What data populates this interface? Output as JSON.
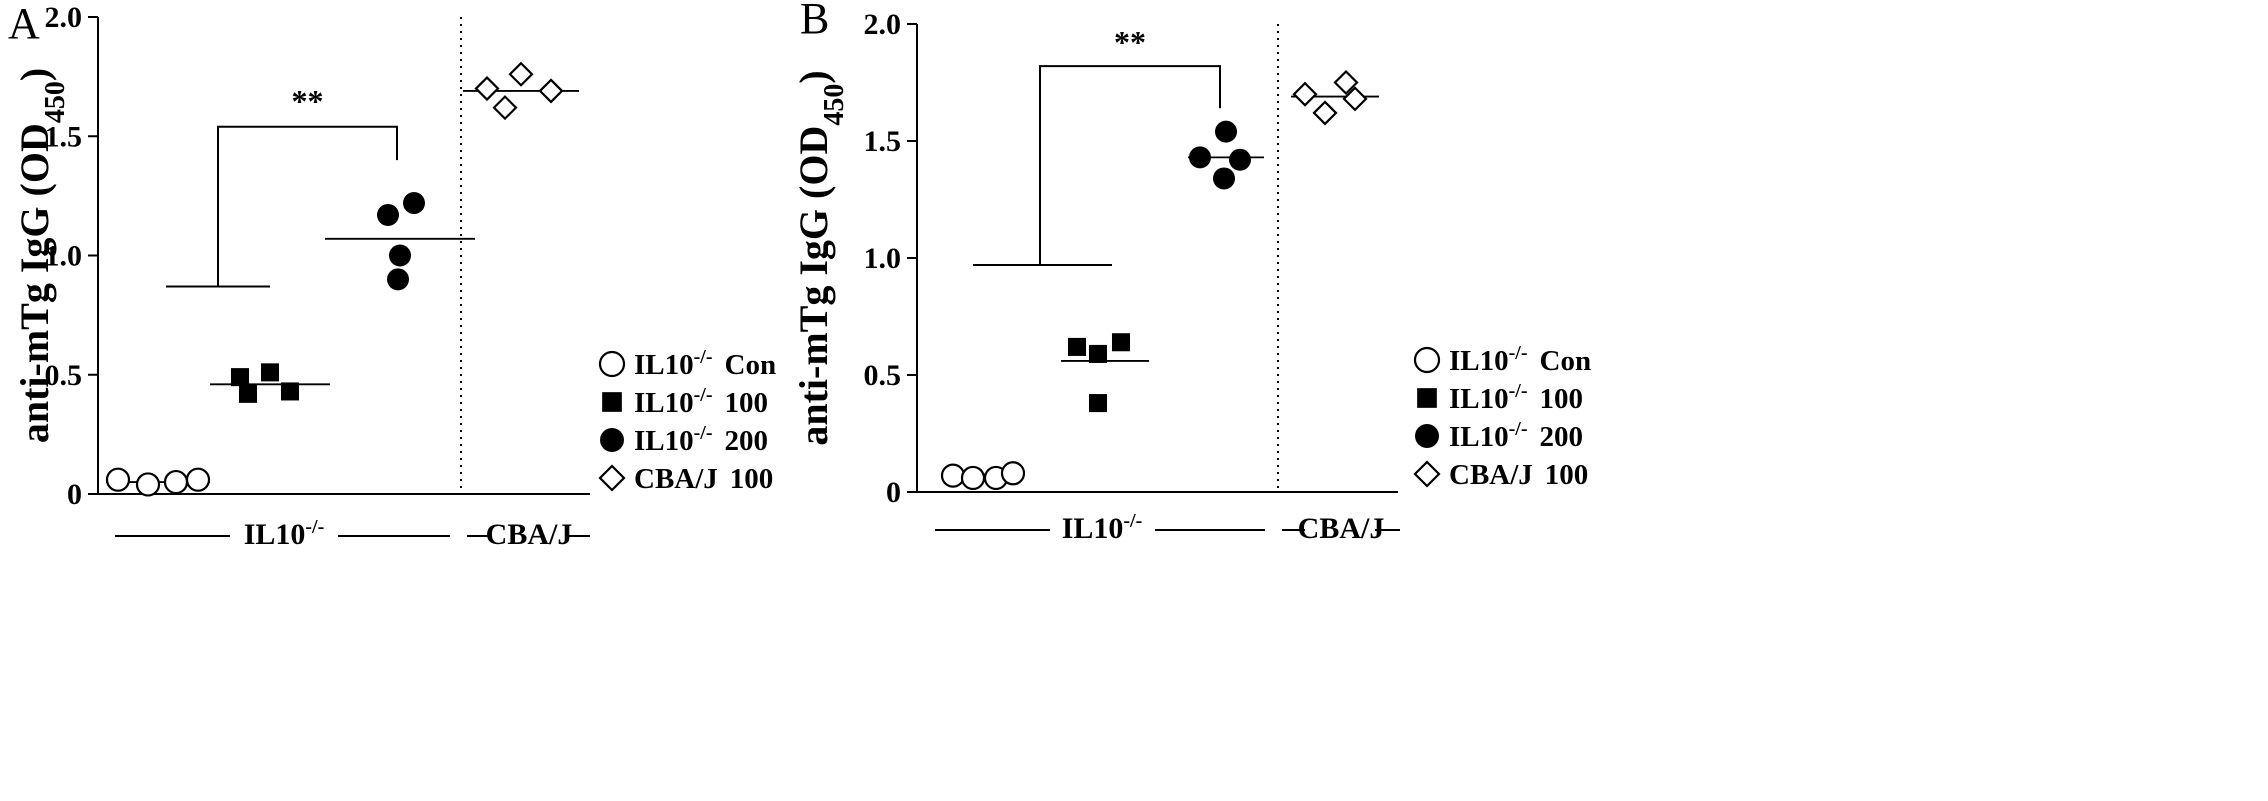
{
  "figure": {
    "legend": [
      {
        "prefix": "IL10",
        "sup": "-/-",
        "suffix": "Con",
        "marker": "circle-open"
      },
      {
        "prefix": "IL10",
        "sup": "-/-",
        "suffix": "100",
        "marker": "square-filled"
      },
      {
        "prefix": "IL10",
        "sup": "-/-",
        "suffix": "200",
        "marker": "circle-filled"
      },
      {
        "prefix": "CBA/J",
        "sup": "",
        "suffix": "100",
        "marker": "diamond-open"
      }
    ]
  },
  "chart_data": [
    {
      "type": "scatter",
      "panel": "A",
      "ylabel": {
        "main": "anti-mTg IgG (OD",
        "sub": "450",
        "close": ")"
      },
      "ylim": [
        0,
        2.0
      ],
      "yticks": [
        "0",
        "0.5",
        "1.0",
        "1.5",
        "2.0"
      ],
      "groups": [
        {
          "marker": "circle-open",
          "values": [
            0.06,
            0.04,
            0.05,
            0.06
          ],
          "mean": 0.05
        },
        {
          "marker": "square-filled",
          "values": [
            0.49,
            0.51,
            0.42,
            0.43
          ],
          "mean": 0.46
        },
        {
          "marker": "circle-filled",
          "values": [
            1.17,
            1.22,
            1.0,
            0.9
          ],
          "mean": 1.07
        },
        {
          "marker": "diamond-open",
          "values": [
            1.7,
            1.76,
            1.62,
            1.69
          ],
          "mean": 1.69
        }
      ],
      "significance": {
        "label": "**",
        "bracket_low": 0.87,
        "bracket_high": 1.54,
        "bracket_right_end": 1.4
      },
      "axis_groups": [
        {
          "prefix": "IL10",
          "sup": "-/-"
        },
        {
          "prefix": "CBA/J",
          "sup": ""
        }
      ]
    },
    {
      "type": "scatter",
      "panel": "B",
      "ylabel": {
        "main": "anti-mTg IgG (OD",
        "sub": "450",
        "close": ")"
      },
      "ylim": [
        0,
        2.0
      ],
      "yticks": [
        "0",
        "0.5",
        "1.0",
        "1.5",
        "2.0"
      ],
      "groups": [
        {
          "marker": "circle-open",
          "values": [
            0.07,
            0.06,
            0.06,
            0.08
          ],
          "mean": 0.07
        },
        {
          "marker": "square-filled",
          "values": [
            0.62,
            0.59,
            0.64,
            0.38
          ],
          "mean": 0.56
        },
        {
          "marker": "circle-filled",
          "values": [
            1.43,
            1.54,
            1.42,
            1.34
          ],
          "mean": 1.43
        },
        {
          "marker": "diamond-open",
          "values": [
            1.7,
            1.75,
            1.62,
            1.68
          ],
          "mean": 1.69
        }
      ],
      "significance": {
        "label": "**",
        "bracket_low": 0.97,
        "bracket_high": 1.82,
        "bracket_right_end": 1.64
      },
      "axis_groups": [
        {
          "prefix": "IL10",
          "sup": "-/-"
        },
        {
          "prefix": "CBA/J",
          "sup": ""
        }
      ]
    }
  ]
}
